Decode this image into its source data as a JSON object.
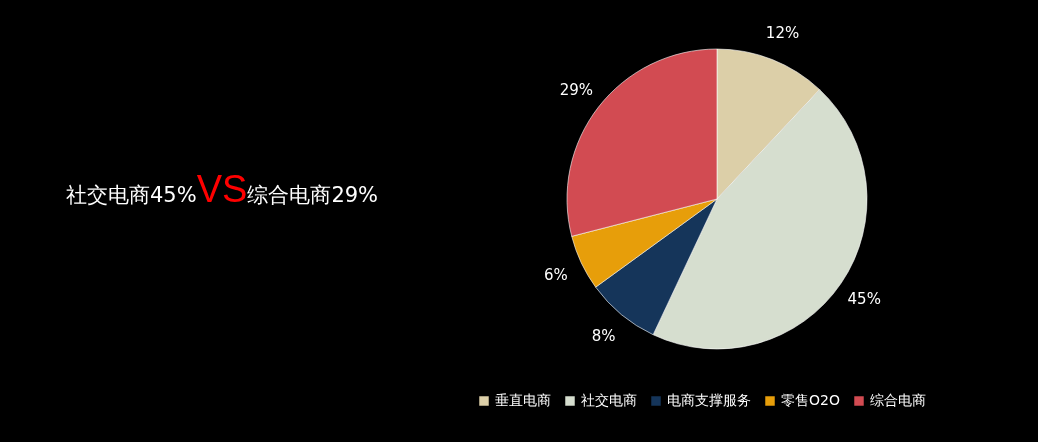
{
  "chart_data": {
    "type": "pie",
    "categories": [
      "垂直电商",
      "社交电商",
      "电商支撑服务",
      "零售O2O",
      "综合电商"
    ],
    "values": [
      12,
      45,
      8,
      6,
      29
    ],
    "colors": [
      "#dccfa8",
      "#d6decf",
      "#15355a",
      "#e79e0a",
      "#d24b52"
    ],
    "value_labels": [
      "12%",
      "45%",
      "8%",
      "6%",
      "29%"
    ],
    "legend": "bottom",
    "annotations": [
      "社交电商45%",
      "VS",
      "综合电商29%"
    ]
  }
}
